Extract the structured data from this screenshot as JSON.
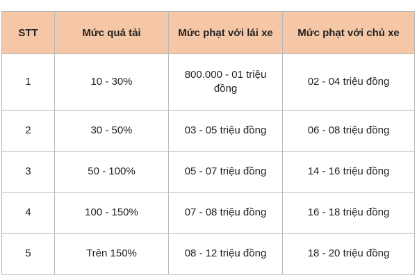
{
  "table": {
    "headers": [
      "STT",
      "Mức quá tải",
      "Mức phạt với lái xe",
      "Mức phạt với chủ xe"
    ],
    "rows": [
      [
        "1",
        "10 - 30%",
        "800.000 - 01 triệu đồng",
        "02 - 04 triệu đồng"
      ],
      [
        "2",
        "30 - 50%",
        "03 - 05 triệu đồng",
        "06 - 08 triệu đồng"
      ],
      [
        "3",
        "50 - 100%",
        "05 - 07 triệu đồng",
        "14 - 16 triệu đồng"
      ],
      [
        "4",
        "100 - 150%",
        "07 - 08 triệu đồng",
        "16 - 18 triệu đồng"
      ],
      [
        "5",
        "Trên 150%",
        "08 - 12 triệu đồng",
        "18 - 20 triệu đồng"
      ]
    ]
  },
  "colors": {
    "header_background": "#f6c7a6",
    "border": "#b8b8b8"
  }
}
